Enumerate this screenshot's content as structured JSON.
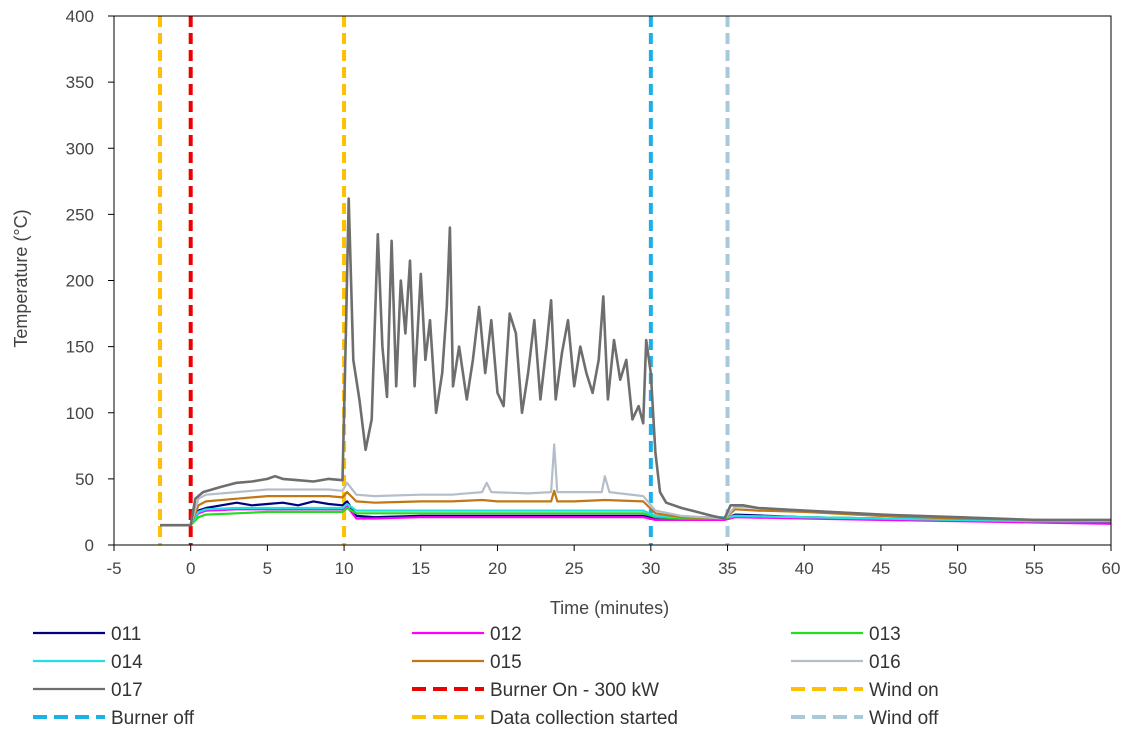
{
  "chart_data": {
    "type": "line",
    "xlabel": "Time (minutes)",
    "ylabel": "Temperature (°C)",
    "xlim": [
      -5,
      60
    ],
    "ylim": [
      0,
      400
    ],
    "x_ticks": [
      "-5",
      "0",
      "5",
      "10",
      "15",
      "20",
      "25",
      "30",
      "35",
      "40",
      "45",
      "50",
      "55",
      "60"
    ],
    "y_ticks": [
      "0",
      "50",
      "100",
      "150",
      "200",
      "250",
      "300",
      "350",
      "400"
    ],
    "grid": false,
    "legend_position": "bottom",
    "series": [
      {
        "name": "011",
        "color": "#000080",
        "dashed": false,
        "points": [
          [
            -2,
            15
          ],
          [
            0,
            15
          ],
          [
            0.5,
            26
          ],
          [
            1,
            28
          ],
          [
            2,
            30
          ],
          [
            3,
            32
          ],
          [
            4,
            30
          ],
          [
            5,
            31
          ],
          [
            6,
            32
          ],
          [
            7,
            30
          ],
          [
            8,
            33
          ],
          [
            9,
            31
          ],
          [
            9.9,
            30
          ],
          [
            10.2,
            33
          ],
          [
            10.8,
            22
          ],
          [
            12,
            21
          ],
          [
            15,
            22
          ],
          [
            20,
            22
          ],
          [
            25,
            22
          ],
          [
            29.5,
            22
          ],
          [
            30.3,
            20
          ],
          [
            32,
            20
          ],
          [
            34.8,
            20
          ],
          [
            35.5,
            23
          ],
          [
            40,
            21
          ],
          [
            45,
            20
          ],
          [
            50,
            19
          ],
          [
            55,
            18
          ],
          [
            60,
            17
          ]
        ]
      },
      {
        "name": "012",
        "color": "#ff00ff",
        "dashed": false,
        "points": [
          [
            -2,
            15
          ],
          [
            0,
            15
          ],
          [
            0.5,
            24
          ],
          [
            1,
            26
          ],
          [
            3,
            27
          ],
          [
            5,
            27
          ],
          [
            7,
            27
          ],
          [
            9.9,
            27
          ],
          [
            10.2,
            29
          ],
          [
            10.8,
            20
          ],
          [
            12,
            20
          ],
          [
            15,
            21
          ],
          [
            20,
            21
          ],
          [
            25,
            21
          ],
          [
            29.5,
            21
          ],
          [
            30.3,
            19
          ],
          [
            32,
            19
          ],
          [
            34.8,
            19
          ],
          [
            35.5,
            21
          ],
          [
            40,
            20
          ],
          [
            45,
            19
          ],
          [
            50,
            18
          ],
          [
            55,
            17
          ],
          [
            60,
            16
          ]
        ]
      },
      {
        "name": "013",
        "color": "#22dd22",
        "dashed": false,
        "points": [
          [
            -2,
            15
          ],
          [
            0,
            15
          ],
          [
            0.5,
            21
          ],
          [
            1,
            23
          ],
          [
            3,
            24
          ],
          [
            5,
            25
          ],
          [
            7,
            25
          ],
          [
            9.9,
            25
          ],
          [
            10.2,
            28
          ],
          [
            10.8,
            24
          ],
          [
            12,
            24
          ],
          [
            15,
            24
          ],
          [
            20,
            24
          ],
          [
            25,
            24
          ],
          [
            29.5,
            24
          ],
          [
            30.3,
            21
          ],
          [
            32,
            20
          ],
          [
            34.8,
            20
          ],
          [
            35.5,
            22
          ],
          [
            40,
            21
          ],
          [
            45,
            20
          ],
          [
            50,
            19
          ],
          [
            55,
            18
          ],
          [
            60,
            18
          ]
        ]
      },
      {
        "name": "014",
        "color": "#22e0e0",
        "dashed": false,
        "points": [
          [
            -2,
            15
          ],
          [
            0,
            15
          ],
          [
            0.5,
            25
          ],
          [
            1,
            27
          ],
          [
            3,
            28
          ],
          [
            5,
            28
          ],
          [
            7,
            28
          ],
          [
            9.9,
            28
          ],
          [
            10.2,
            31
          ],
          [
            10.8,
            26
          ],
          [
            12,
            26
          ],
          [
            15,
            26
          ],
          [
            20,
            26
          ],
          [
            25,
            26
          ],
          [
            29.5,
            26
          ],
          [
            30.3,
            22
          ],
          [
            32,
            21
          ],
          [
            34.8,
            21
          ],
          [
            35.5,
            22
          ],
          [
            40,
            21
          ],
          [
            45,
            20
          ],
          [
            50,
            19
          ],
          [
            55,
            18
          ],
          [
            60,
            18
          ]
        ]
      },
      {
        "name": "015",
        "color": "#c07814",
        "dashed": false,
        "points": [
          [
            -2,
            15
          ],
          [
            0,
            15
          ],
          [
            0.5,
            30
          ],
          [
            1,
            33
          ],
          [
            3,
            35
          ],
          [
            5,
            37
          ],
          [
            7,
            37
          ],
          [
            9,
            37
          ],
          [
            9.9,
            36
          ],
          [
            10.2,
            40
          ],
          [
            10.8,
            33
          ],
          [
            12,
            32
          ],
          [
            15,
            33
          ],
          [
            17,
            33
          ],
          [
            19,
            34
          ],
          [
            20,
            33
          ],
          [
            22,
            33
          ],
          [
            23.5,
            33
          ],
          [
            23.7,
            41
          ],
          [
            23.9,
            33
          ],
          [
            25,
            33
          ],
          [
            27,
            34
          ],
          [
            29.5,
            33
          ],
          [
            30.3,
            24
          ],
          [
            32,
            21
          ],
          [
            34.8,
            20
          ],
          [
            35.5,
            27
          ],
          [
            37,
            26
          ],
          [
            40,
            25
          ],
          [
            45,
            22
          ],
          [
            50,
            20
          ],
          [
            55,
            19
          ],
          [
            60,
            18
          ]
        ]
      },
      {
        "name": "016",
        "color": "#b4bec8",
        "dashed": false,
        "points": [
          [
            -2,
            15
          ],
          [
            0,
            15
          ],
          [
            0.5,
            35
          ],
          [
            1,
            38
          ],
          [
            3,
            40
          ],
          [
            5,
            42
          ],
          [
            7,
            42
          ],
          [
            9,
            42
          ],
          [
            9.9,
            41
          ],
          [
            10.2,
            47
          ],
          [
            10.8,
            38
          ],
          [
            12,
            37
          ],
          [
            15,
            38
          ],
          [
            17,
            38
          ],
          [
            19,
            40
          ],
          [
            19.3,
            47
          ],
          [
            19.6,
            40
          ],
          [
            22,
            39
          ],
          [
            23.5,
            40
          ],
          [
            23.7,
            76
          ],
          [
            23.9,
            40
          ],
          [
            25,
            40
          ],
          [
            26.8,
            40
          ],
          [
            27,
            52
          ],
          [
            27.3,
            40
          ],
          [
            29.5,
            37
          ],
          [
            30.3,
            26
          ],
          [
            32,
            22
          ],
          [
            34.8,
            20
          ],
          [
            35.5,
            29
          ],
          [
            37,
            28
          ],
          [
            40,
            26
          ],
          [
            45,
            23
          ],
          [
            50,
            21
          ],
          [
            55,
            19
          ],
          [
            60,
            18
          ]
        ]
      },
      {
        "name": "017",
        "color": "#6e6e6e",
        "dashed": false,
        "points": [
          [
            -2,
            15
          ],
          [
            0,
            15
          ],
          [
            0.3,
            35
          ],
          [
            0.8,
            40
          ],
          [
            2,
            44
          ],
          [
            3,
            47
          ],
          [
            4,
            48
          ],
          [
            5,
            50
          ],
          [
            5.5,
            52
          ],
          [
            6,
            50
          ],
          [
            7,
            49
          ],
          [
            8,
            48
          ],
          [
            9,
            50
          ],
          [
            9.9,
            49
          ],
          [
            10.1,
            150
          ],
          [
            10.3,
            262
          ],
          [
            10.6,
            140
          ],
          [
            11,
            110
          ],
          [
            11.4,
            72
          ],
          [
            11.8,
            95
          ],
          [
            12.2,
            235
          ],
          [
            12.5,
            150
          ],
          [
            12.8,
            112
          ],
          [
            13.1,
            230
          ],
          [
            13.4,
            120
          ],
          [
            13.7,
            200
          ],
          [
            14,
            160
          ],
          [
            14.3,
            215
          ],
          [
            14.6,
            120
          ],
          [
            15,
            205
          ],
          [
            15.3,
            140
          ],
          [
            15.6,
            170
          ],
          [
            16,
            100
          ],
          [
            16.4,
            130
          ],
          [
            16.7,
            180
          ],
          [
            16.9,
            240
          ],
          [
            17.1,
            120
          ],
          [
            17.5,
            150
          ],
          [
            18,
            110
          ],
          [
            18.4,
            140
          ],
          [
            18.8,
            180
          ],
          [
            19.2,
            130
          ],
          [
            19.6,
            170
          ],
          [
            20,
            115
          ],
          [
            20.4,
            105
          ],
          [
            20.8,
            175
          ],
          [
            21.2,
            160
          ],
          [
            21.6,
            100
          ],
          [
            22,
            130
          ],
          [
            22.4,
            170
          ],
          [
            22.8,
            110
          ],
          [
            23.2,
            150
          ],
          [
            23.5,
            185
          ],
          [
            23.8,
            110
          ],
          [
            24.2,
            145
          ],
          [
            24.6,
            170
          ],
          [
            25,
            120
          ],
          [
            25.4,
            150
          ],
          [
            25.8,
            130
          ],
          [
            26.2,
            115
          ],
          [
            26.6,
            140
          ],
          [
            26.9,
            188
          ],
          [
            27.2,
            110
          ],
          [
            27.6,
            155
          ],
          [
            28,
            125
          ],
          [
            28.4,
            140
          ],
          [
            28.8,
            95
          ],
          [
            29.2,
            105
          ],
          [
            29.5,
            92
          ],
          [
            29.7,
            155
          ],
          [
            30,
            130
          ],
          [
            30.3,
            70
          ],
          [
            30.6,
            40
          ],
          [
            31,
            32
          ],
          [
            32,
            28
          ],
          [
            33,
            25
          ],
          [
            34,
            22
          ],
          [
            34.8,
            20
          ],
          [
            35.2,
            30
          ],
          [
            36,
            30
          ],
          [
            37,
            28
          ],
          [
            40,
            26
          ],
          [
            45,
            23
          ],
          [
            50,
            21
          ],
          [
            55,
            19
          ],
          [
            60,
            19
          ]
        ]
      }
    ],
    "vertical_markers": [
      {
        "name": "Burner On - 300 kW",
        "x": 0,
        "color": "#ee0000",
        "dashed": true
      },
      {
        "name": "Wind on",
        "x": 10,
        "color": "#ffc000",
        "dashed": true
      },
      {
        "name": "Burner off",
        "x": 30,
        "color": "#1ab0e8",
        "dashed": true
      },
      {
        "name": "Data collection started",
        "x": -2,
        "color": "#ffc000",
        "dashed": true
      },
      {
        "name": "Wind off",
        "x": 35,
        "color": "#a9c8d9",
        "dashed": true
      }
    ],
    "legend": [
      "011",
      "012",
      "013",
      "014",
      "015",
      "016",
      "017",
      "Burner On - 300 kW",
      "Wind on",
      "Burner off",
      "Data collection started",
      "Wind off"
    ]
  }
}
